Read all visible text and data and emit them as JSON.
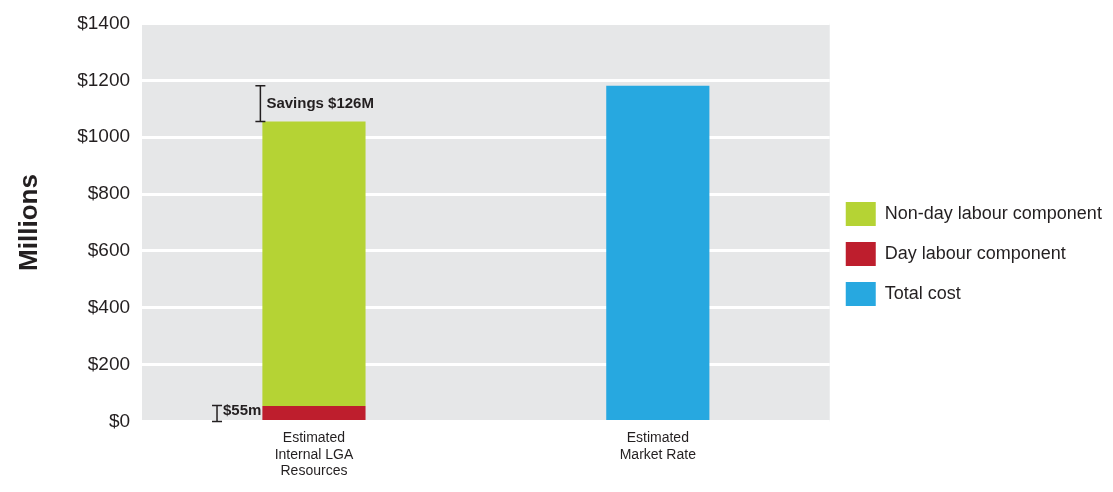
{
  "chart_data": {
    "type": "bar",
    "ylabel": "Millions",
    "categories": [
      "Estimated Internal LGA Resources",
      "Estimated Market Rate"
    ],
    "stacked": true,
    "series": [
      {
        "name": "Day labour component",
        "color": "#be1e2d",
        "values": [
          55,
          null
        ]
      },
      {
        "name": "Non-day labour component",
        "color": "#b5d334",
        "values": [
          1000,
          null
        ]
      },
      {
        "name": "Total cost",
        "color": "#27a8e0",
        "values": [
          null,
          1181
        ]
      }
    ],
    "ylim": [
      0,
      1400
    ],
    "yticks": [
      {
        "value": 0,
        "label": "$0"
      },
      {
        "value": 200,
        "label": "$200"
      },
      {
        "value": 400,
        "label": "$400"
      },
      {
        "value": 600,
        "label": "$600"
      },
      {
        "value": 800,
        "label": "$800"
      },
      {
        "value": 1000,
        "label": "$1000"
      },
      {
        "value": 1200,
        "label": "$1200"
      },
      {
        "value": 1400,
        "label": "$1400"
      }
    ],
    "grid": "y",
    "legend": "right",
    "annotations": [
      {
        "text": "Savings $126M",
        "x": "Estimated Internal LGA Resources",
        "y": 1055
      },
      "$55m"
    ]
  }
}
